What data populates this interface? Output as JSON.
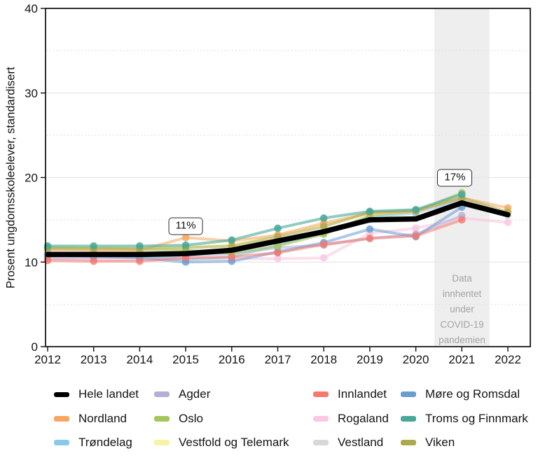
{
  "chart_data": {
    "type": "line",
    "title": "",
    "xlabel": "",
    "ylabel": "Prosent ungdomsskoleelever, standardisert",
    "x": [
      2012,
      2013,
      2014,
      2015,
      2016,
      2017,
      2018,
      2019,
      2020,
      2021,
      2022
    ],
    "x_tick_labels": [
      "2012",
      "2013",
      "2014",
      "2015",
      "2016",
      "2017",
      "2018",
      "2019",
      "2020",
      "2021",
      "2022"
    ],
    "ylim": [
      0,
      40
    ],
    "y_major_ticks": [
      0,
      10,
      20,
      30,
      40
    ],
    "y_minor_gridlines": [
      5,
      15,
      25,
      35
    ],
    "grid": "horizontal only; major solid, minor dotted",
    "values_note": "values approximate, read from chart pixels",
    "covid_band": {
      "x_start": 2020.4,
      "x_end": 2021.6,
      "color": "#eeeeee",
      "label": "Data\ninnhentet\nunder\nCOVID-19\npandemien"
    },
    "annotations": [
      {
        "label": "11%",
        "x": 2015,
        "y": 14.25,
        "points_to": {
          "series": "Hele landet",
          "x": 2015,
          "value": 11
        }
      },
      {
        "label": "17%",
        "x": 2020.85,
        "y": 20.0,
        "points_to": {
          "series": "Hele landet",
          "x": 2021,
          "value": 17
        }
      }
    ],
    "series": [
      {
        "name": "Vestland",
        "color": "#d8d8d8",
        "width": 4,
        "opacity": 0.55,
        "points": true,
        "values": [
          11.3,
          11.2,
          11.2,
          11.3,
          11.4,
          12.4,
          13.5,
          15.0,
          15.2,
          17.2,
          15.5
        ]
      },
      {
        "name": "Vestfold og Telemark",
        "color": "#f6f3a4",
        "width": 4,
        "opacity": 0.6,
        "points": true,
        "values": [
          11.8,
          11.7,
          11.7,
          11.8,
          12.0,
          13.2,
          14.4,
          15.7,
          16.0,
          17.8,
          null
        ]
      },
      {
        "name": "Rogaland",
        "color": "#fac8e0",
        "width": 4,
        "opacity": 0.6,
        "points": true,
        "values": [
          10.4,
          10.3,
          10.3,
          10.4,
          10.4,
          10.4,
          10.5,
          13.4,
          14.0,
          15.2,
          14.7
        ]
      },
      {
        "name": "Agder",
        "color": "#b5afd8",
        "width": 4,
        "opacity": 0.55,
        "points": true,
        "values": [
          10.5,
          10.5,
          10.6,
          10.8,
          11.0,
          11.7,
          12.0,
          12.8,
          13.3,
          15.5,
          null
        ]
      },
      {
        "name": "Trøndelag",
        "color": "#87c9e8",
        "width": 4,
        "opacity": 0.55,
        "points": true,
        "values": [
          11.0,
          10.9,
          10.8,
          10.3,
          10.6,
          12.0,
          13.5,
          15.3,
          15.8,
          17.4,
          null
        ]
      },
      {
        "name": "Møre og Romsdal",
        "color": "#689dd1",
        "width": 4,
        "opacity": 0.55,
        "points": true,
        "values": [
          10.8,
          10.7,
          10.5,
          10.0,
          10.1,
          11.2,
          12.3,
          13.9,
          13.0,
          16.5,
          null
        ]
      },
      {
        "name": "Oslo",
        "color": "#a2c75a",
        "width": 4,
        "opacity": 0.55,
        "points": true,
        "values": [
          11.7,
          11.6,
          11.5,
          11.4,
          11.0,
          11.9,
          13.3,
          15.5,
          16.0,
          18.2,
          null
        ]
      },
      {
        "name": "Nordland",
        "color": "#f8a55d",
        "width": 4,
        "opacity": 0.55,
        "points": true,
        "values": [
          11.5,
          11.4,
          11.4,
          12.9,
          12.5,
          13.2,
          14.6,
          15.8,
          16.0,
          17.6,
          16.4
        ]
      },
      {
        "name": "Viken",
        "color": "#abaa4d",
        "width": 4,
        "opacity": 0.55,
        "points": true,
        "values": [
          11.6,
          11.6,
          11.6,
          11.7,
          11.9,
          13.0,
          14.2,
          15.9,
          16.1,
          17.6,
          15.9
        ]
      },
      {
        "name": "Innlandet",
        "color": "#f5796d",
        "width": 4,
        "opacity": 0.55,
        "points": true,
        "values": [
          10.2,
          10.1,
          10.1,
          10.5,
          10.6,
          11.1,
          12.1,
          12.8,
          13.1,
          15.0,
          null
        ]
      },
      {
        "name": "Troms og Finnmark",
        "color": "#47a89a",
        "width": 4,
        "opacity": 0.6,
        "points": true,
        "values": [
          11.9,
          11.9,
          11.9,
          12.0,
          12.6,
          14.0,
          15.2,
          16.0,
          16.2,
          18.0,
          null
        ]
      },
      {
        "name": "Hele landet",
        "color": "#000000",
        "width": 7.5,
        "opacity": 1,
        "points": false,
        "values": [
          10.9,
          10.9,
          10.9,
          11.0,
          11.4,
          12.5,
          13.6,
          15.0,
          15.1,
          17.0,
          15.6
        ]
      }
    ],
    "legend": {
      "position": "bottom",
      "rows": 3,
      "columns": 4,
      "items": [
        "Hele landet",
        "Agder",
        "Innlandet",
        "Møre og Romsdal",
        "Nordland",
        "Oslo",
        "Rogaland",
        "Troms og Finnmark",
        "Trøndelag",
        "Vestfold og Telemark",
        "Vestland",
        "Viken"
      ]
    },
    "axis_color": "#1a1a1a",
    "major_grid_color": "#e6e6e6",
    "minor_grid_color": "#dcdcdc"
  }
}
